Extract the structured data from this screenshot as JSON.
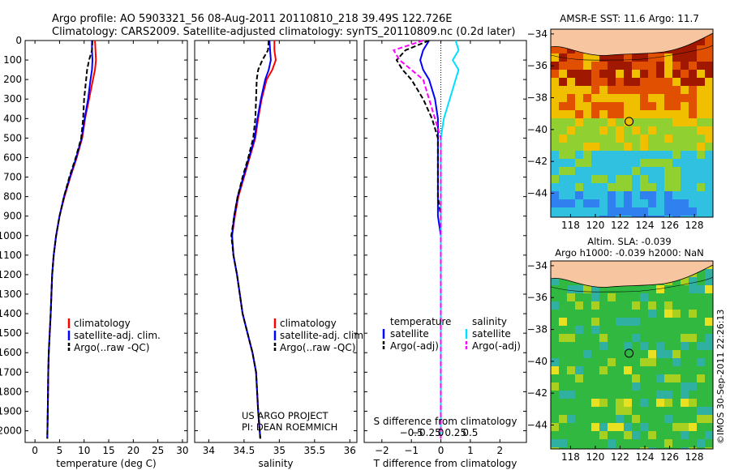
{
  "figure": {
    "title_line1": "Argo profile: AO 5903321_56 08-Aug-2011 20110810_218 39.49S 122.726E",
    "title_line2": "Climatology: CARS2009. Satellite-adjusted climatology: synTS_20110809.nc (0.2d later)",
    "credit": "US ARGO PROJECT",
    "pi": "PI: DEAN ROEMMICH",
    "imos": "©IMOS 30-Sep-2011 22:26:13"
  },
  "colors": {
    "climatology": "#ff0000",
    "satellite": "#0000ff",
    "argo": "#000000",
    "salinity_satellite": "#00e0ff",
    "salinity_argo": "#ff00ff",
    "land": "#f7c59f"
  },
  "chart_data": [
    {
      "type": "line",
      "xlabel": "temperature (deg C)",
      "xlim": [
        -2,
        31
      ],
      "ylim": [
        0,
        2060
      ],
      "y_reversed": true,
      "xticks": [
        0,
        5,
        10,
        15,
        20,
        25,
        30
      ],
      "yticks": [
        0,
        100,
        200,
        300,
        400,
        500,
        600,
        700,
        800,
        900,
        1000,
        1100,
        1200,
        1300,
        1400,
        1500,
        1600,
        1700,
        1800,
        1900,
        2000
      ],
      "legend": [
        "climatology",
        "satellite-adj. clim.",
        "Argo(..raw -QC)"
      ],
      "series": [
        {
          "name": "climatology",
          "style": "solid",
          "color": "climatology",
          "x": [
            12.2,
            12.3,
            12.4,
            12.2,
            11.8,
            11.0,
            10.2,
            9.6,
            8.5,
            7.2,
            6.0,
            5.0,
            4.3,
            3.8,
            3.5,
            3.2,
            3.0,
            2.8,
            2.7,
            2.6,
            2.5
          ],
          "y": [
            0,
            50,
            100,
            150,
            200,
            300,
            400,
            500,
            600,
            700,
            800,
            900,
            1000,
            1100,
            1200,
            1400,
            1500,
            1600,
            1700,
            1900,
            2040
          ]
        },
        {
          "name": "satellite-adj. clim.",
          "style": "solid",
          "color": "satellite",
          "x": [
            11.6,
            11.6,
            11.7,
            11.6,
            11.3,
            10.8,
            10.1,
            9.5,
            8.4,
            7.1,
            5.9,
            5.0,
            4.3,
            3.8,
            3.5,
            3.2,
            3.0,
            2.8,
            2.7,
            2.6,
            2.5
          ],
          "y": [
            0,
            50,
            100,
            150,
            200,
            300,
            400,
            500,
            600,
            700,
            800,
            900,
            1000,
            1100,
            1200,
            1400,
            1500,
            1600,
            1700,
            1900,
            2040
          ]
        },
        {
          "name": "Argo(..raw -QC)",
          "style": "dashed",
          "color": "argo",
          "x": [
            11.7,
            11.6,
            11.0,
            10.6,
            10.4,
            10.0,
            9.8,
            9.4,
            8.3,
            7.0,
            5.9,
            5.0,
            4.3,
            3.8,
            3.5,
            3.2,
            3.0,
            2.8,
            2.7,
            2.6,
            2.5
          ],
          "y": [
            0,
            50,
            100,
            150,
            200,
            300,
            400,
            500,
            600,
            700,
            800,
            900,
            1000,
            1100,
            1200,
            1400,
            1500,
            1600,
            1700,
            1900,
            2040
          ]
        }
      ]
    },
    {
      "type": "line",
      "xlabel": "salinity",
      "xlim": [
        33.8,
        36.1
      ],
      "ylim": [
        0,
        2060
      ],
      "y_reversed": true,
      "xticks": [
        34,
        34.5,
        35,
        35.5,
        36
      ],
      "legend": [
        "climatology",
        "satellite-adj. clim.",
        "Argo(..raw -QC)"
      ],
      "series": [
        {
          "name": "climatology",
          "style": "solid",
          "color": "climatology",
          "x": [
            34.93,
            34.93,
            34.95,
            34.9,
            34.82,
            34.75,
            34.7,
            34.66,
            34.58,
            34.5,
            34.42,
            34.37,
            34.33,
            34.35,
            34.4,
            34.48,
            34.55,
            34.62,
            34.67,
            34.7,
            34.73
          ],
          "y": [
            0,
            50,
            100,
            150,
            200,
            300,
            400,
            500,
            600,
            700,
            800,
            900,
            1000,
            1100,
            1200,
            1400,
            1500,
            1600,
            1700,
            1900,
            2040
          ]
        },
        {
          "name": "satellite-adj. clim.",
          "style": "solid",
          "color": "satellite",
          "x": [
            34.86,
            34.87,
            34.88,
            34.85,
            34.8,
            34.74,
            34.69,
            34.65,
            34.57,
            34.49,
            34.41,
            34.36,
            34.33,
            34.35,
            34.4,
            34.48,
            34.55,
            34.62,
            34.67,
            34.7,
            34.73
          ],
          "y": [
            0,
            50,
            100,
            150,
            200,
            300,
            400,
            500,
            600,
            700,
            800,
            900,
            1000,
            1100,
            1200,
            1400,
            1500,
            1600,
            1700,
            1900,
            2040
          ]
        },
        {
          "name": "Argo(..raw -QC)",
          "style": "dashed",
          "color": "argo",
          "x": [
            34.85,
            34.84,
            34.76,
            34.7,
            34.68,
            34.67,
            34.66,
            34.63,
            34.56,
            34.48,
            34.41,
            34.36,
            34.32,
            34.35,
            34.4,
            34.48,
            34.55,
            34.62,
            34.67,
            34.7,
            34.73
          ],
          "y": [
            0,
            50,
            100,
            150,
            200,
            300,
            400,
            500,
            600,
            700,
            800,
            900,
            1000,
            1100,
            1200,
            1400,
            1500,
            1600,
            1700,
            1900,
            2040
          ]
        }
      ]
    },
    {
      "type": "line",
      "xlabel": "T difference from climatology",
      "toplabel": "S difference from climatology",
      "xlim": [
        -2.6,
        2.9
      ],
      "ylim": [
        0,
        2060
      ],
      "y_reversed": true,
      "xticks": [
        -2,
        -1,
        0,
        1,
        2
      ],
      "s_xticks": [
        -0.5,
        -0.25,
        0,
        0.25,
        0.5
      ],
      "s_xtick_labels": [
        "−0.5",
        "−0.25",
        "0",
        "0.25",
        "0.5"
      ],
      "legend_temperature": "temperature",
      "legend_salinity": "salinity",
      "legend_items": [
        "satellite",
        "Argo(-adj)"
      ],
      "series": [
        {
          "name": "temperature satellite",
          "style": "solid",
          "color": "satellite",
          "x": [
            -0.4,
            -0.6,
            -0.7,
            -0.6,
            -0.4,
            -0.2,
            -0.1,
            -0.1,
            -0.1,
            -0.1,
            -0.1,
            -0.1,
            0,
            0,
            0,
            0,
            0,
            0
          ],
          "y": [
            0,
            50,
            100,
            150,
            200,
            300,
            400,
            500,
            600,
            700,
            800,
            900,
            1000,
            1200,
            1400,
            1600,
            1800,
            2040
          ]
        },
        {
          "name": "temperature Argo(-adj)",
          "style": "dashed",
          "color": "argo",
          "x": [
            -0.4,
            -1.2,
            -1.5,
            -1.3,
            -1.0,
            -0.6,
            -0.3,
            -0.1,
            -0.1,
            -0.1,
            -0.1,
            0,
            0,
            0,
            0,
            0,
            0,
            0
          ],
          "y": [
            0,
            50,
            100,
            150,
            200,
            300,
            400,
            500,
            600,
            700,
            800,
            900,
            1000,
            1200,
            1400,
            1600,
            1800,
            2040
          ]
        },
        {
          "name": "salinity satellite",
          "style": "solid",
          "color": "salinity_satellite",
          "x": [
            0.25,
            0.3,
            0.2,
            0.3,
            0.25,
            0.15,
            0.05,
            0,
            0,
            0,
            0,
            0,
            0,
            0,
            0,
            0,
            0,
            0
          ],
          "y": [
            0,
            50,
            100,
            150,
            200,
            300,
            400,
            500,
            600,
            700,
            800,
            900,
            1000,
            1200,
            1400,
            1600,
            1800,
            2040
          ]
        },
        {
          "name": "salinity Argo(-adj)",
          "style": "dashed",
          "color": "salinity_argo",
          "x": [
            -0.3,
            -0.8,
            -0.7,
            -0.5,
            -0.3,
            -0.2,
            -0.1,
            0,
            0,
            0,
            0,
            0,
            0,
            0,
            0,
            0,
            0,
            0
          ],
          "y": [
            0,
            50,
            100,
            150,
            200,
            300,
            400,
            500,
            600,
            700,
            800,
            900,
            1000,
            1200,
            1400,
            1600,
            1800,
            2040
          ]
        }
      ]
    },
    {
      "type": "heatmap",
      "title": "AMSR-E SST: 11.6 Argo: 11.7",
      "xlim": [
        116.4,
        129.5
      ],
      "ylim": [
        -45.5,
        -33.7
      ],
      "xticks": [
        118,
        120,
        122,
        124,
        126,
        128
      ],
      "yticks": [
        -34,
        -36,
        -38,
        -40,
        -42,
        -44
      ],
      "ytick_labels": [
        "−34",
        "−36",
        "−38",
        "−40",
        "−42",
        "−44"
      ],
      "marker": {
        "lon": 122.726,
        "lat": -39.49
      },
      "colors": {
        "north": "#a01800",
        "upper": "#e05000",
        "mid": "#f0c000",
        "band": "#90d030",
        "south": "#30c0e0",
        "deep": "#3080f0"
      }
    },
    {
      "type": "heatmap",
      "title": "Altim. SLA: -0.039",
      "subtitle": "Argo h1000: -0.039 h2000: NaN",
      "xlim": [
        116.4,
        129.5
      ],
      "ylim": [
        -45.5,
        -33.7
      ],
      "xticks": [
        118,
        120,
        122,
        124,
        126,
        128
      ],
      "yticks": [
        -34,
        -36,
        -38,
        -40,
        -42,
        -44
      ],
      "ytick_labels": [
        "−34",
        "−36",
        "−38",
        "−40",
        "−42",
        "−44"
      ],
      "marker": {
        "lon": 122.726,
        "lat": -39.49
      },
      "colors": {
        "base": "#30b840",
        "low": "#30b0a0",
        "high": "#a8d020",
        "peak": "#e8e020"
      }
    }
  ]
}
